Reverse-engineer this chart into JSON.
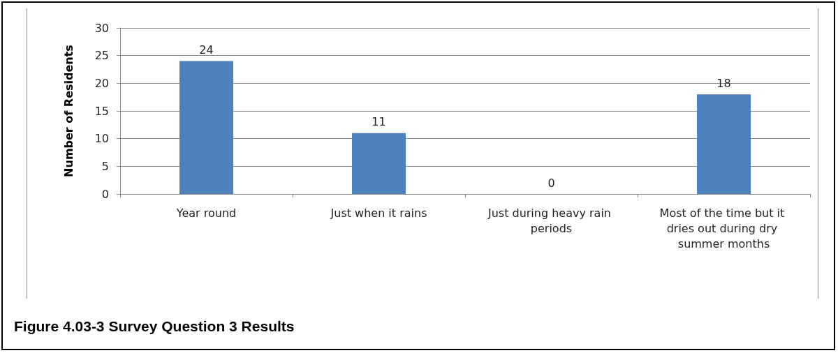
{
  "chart_data": {
    "type": "bar",
    "categories": [
      "Year round",
      "Just when it rains",
      "Just during heavy rain periods",
      "Most of the time but it dries out during dry summer months"
    ],
    "values": [
      24,
      11,
      0,
      18
    ],
    "color": "#4f81bd",
    "ylabel": "Number of Residents",
    "ylim": [
      0,
      30
    ],
    "yticks": [
      0,
      5,
      10,
      15,
      20,
      25,
      30
    ],
    "grid": "y",
    "data_labels": true,
    "annotations": [
      "Figure 4.03-3  Survey Question 3 Results"
    ]
  }
}
